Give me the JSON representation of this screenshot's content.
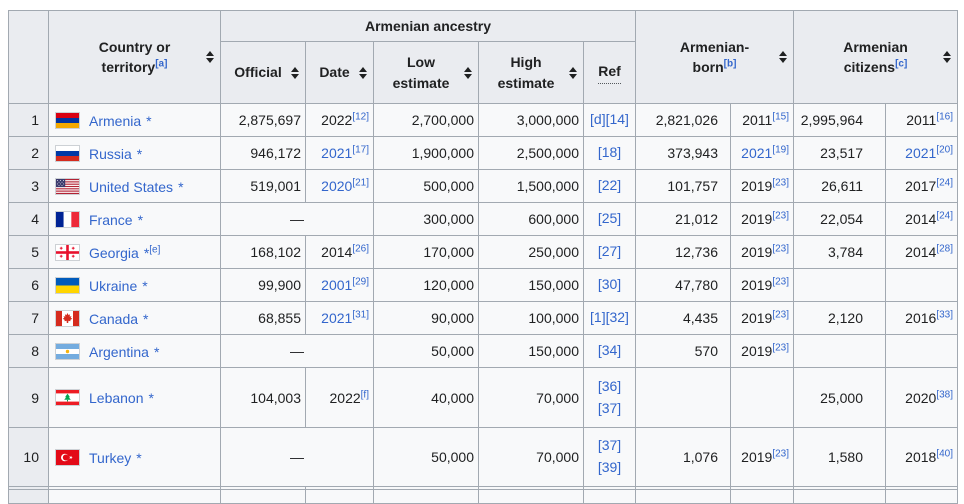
{
  "header": {
    "group_ancestry": "Armenian ancestry",
    "country": "Country or territory",
    "country_note": "[a]",
    "official": "Official",
    "date": "Date",
    "low": "Low estimate",
    "high": "High estimate",
    "ref": "Ref",
    "born": "Armenian-born",
    "born_note": "[b]",
    "citizens": "Armenian citizens",
    "citizens_note": "[c]"
  },
  "colors": {
    "link_blue": "#3366cc",
    "header_bg": "#eaecf0",
    "cell_bg": "#f8f9fa",
    "border": "#a2a9b1",
    "text": "#202122"
  },
  "rows": [
    {
      "num": "1",
      "flag": "am",
      "name": "Armenia",
      "star": "*",
      "note": "",
      "dash": false,
      "official": "2,875,697",
      "anc_year": "2022",
      "anc_ref": "[12]",
      "anc_linked": false,
      "low": "2,700,000",
      "high": "3,000,000",
      "ref1": "[d][14]",
      "ref2": "",
      "born": "2,821,026",
      "born_year": "2011",
      "born_ref": "[15]",
      "born_linked": false,
      "cit": "2,995,964",
      "cit_year": "2011",
      "cit_ref": "[16]",
      "cit_linked": false
    },
    {
      "num": "2",
      "flag": "ru",
      "name": "Russia",
      "star": "*",
      "note": "",
      "dash": false,
      "official": "946,172",
      "anc_year": "2021",
      "anc_ref": "[17]",
      "anc_linked": true,
      "low": "1,900,000",
      "high": "2,500,000",
      "ref1": "[18]",
      "ref2": "",
      "born": "373,943",
      "born_year": "2021",
      "born_ref": "[19]",
      "born_linked": true,
      "cit": "23,517",
      "cit_year": "2021",
      "cit_ref": "[20]",
      "cit_linked": true
    },
    {
      "num": "3",
      "flag": "us",
      "name": "United States",
      "star": "*",
      "note": "",
      "dash": false,
      "official": "519,001",
      "anc_year": "2020",
      "anc_ref": "[21]",
      "anc_linked": true,
      "low": "500,000",
      "high": "1,500,000",
      "ref1": "[22]",
      "ref2": "",
      "born": "101,757",
      "born_year": "2019",
      "born_ref": "[23]",
      "born_linked": false,
      "cit": "26,611",
      "cit_year": "2017",
      "cit_ref": "[24]",
      "cit_linked": false
    },
    {
      "num": "4",
      "flag": "fr",
      "name": "France",
      "star": "*",
      "note": "",
      "dash": true,
      "official": "—",
      "anc_year": "",
      "anc_ref": "",
      "anc_linked": false,
      "low": "300,000",
      "high": "600,000",
      "ref1": "[25]",
      "ref2": "",
      "born": "21,012",
      "born_year": "2019",
      "born_ref": "[23]",
      "born_linked": false,
      "cit": "22,054",
      "cit_year": "2014",
      "cit_ref": "[24]",
      "cit_linked": false
    },
    {
      "num": "5",
      "flag": "ge",
      "name": "Georgia",
      "star": "*",
      "note": "[e]",
      "dash": false,
      "official": "168,102",
      "anc_year": "2014",
      "anc_ref": "[26]",
      "anc_linked": false,
      "low": "170,000",
      "high": "250,000",
      "ref1": "[27]",
      "ref2": "",
      "born": "12,736",
      "born_year": "2019",
      "born_ref": "[23]",
      "born_linked": false,
      "cit": "3,784",
      "cit_year": "2014",
      "cit_ref": "[28]",
      "cit_linked": false
    },
    {
      "num": "6",
      "flag": "ua",
      "name": "Ukraine",
      "star": "*",
      "note": "",
      "dash": false,
      "official": "99,900",
      "anc_year": "2001",
      "anc_ref": "[29]",
      "anc_linked": true,
      "low": "120,000",
      "high": "150,000",
      "ref1": "[30]",
      "ref2": "",
      "born": "47,780",
      "born_year": "2019",
      "born_ref": "[23]",
      "born_linked": false,
      "cit": "",
      "cit_year": "",
      "cit_ref": "",
      "cit_linked": false
    },
    {
      "num": "7",
      "flag": "ca",
      "name": "Canada",
      "star": "*",
      "note": "",
      "dash": false,
      "official": "68,855",
      "anc_year": "2021",
      "anc_ref": "[31]",
      "anc_linked": true,
      "low": "90,000",
      "high": "100,000",
      "ref1": "[1][32]",
      "ref2": "",
      "born": "4,435",
      "born_year": "2019",
      "born_ref": "[23]",
      "born_linked": false,
      "cit": "2,120",
      "cit_year": "2016",
      "cit_ref": "[33]",
      "cit_linked": false
    },
    {
      "num": "8",
      "flag": "ar",
      "name": "Argentina",
      "star": "*",
      "note": "",
      "dash": true,
      "official": "—",
      "anc_year": "",
      "anc_ref": "",
      "anc_linked": false,
      "low": "50,000",
      "high": "150,000",
      "ref1": "[34]",
      "ref2": "",
      "born": "570",
      "born_year": "2019",
      "born_ref": "[23]",
      "born_linked": false,
      "cit": "",
      "cit_year": "",
      "cit_ref": "",
      "cit_linked": false
    },
    {
      "num": "9",
      "flag": "lb",
      "name": "Lebanon",
      "star": "*",
      "note": "",
      "dash": false,
      "official": "104,003",
      "anc_year": "2022",
      "anc_ref": "[f]",
      "anc_linked": false,
      "low": "40,000",
      "high": "70,000",
      "ref1": "[36]",
      "ref2": "[37]",
      "born": "",
      "born_year": "",
      "born_ref": "",
      "born_linked": false,
      "cit": "25,000",
      "cit_year": "2020",
      "cit_ref": "[38]",
      "cit_linked": false
    },
    {
      "num": "10",
      "flag": "tr",
      "name": "Turkey",
      "star": "*",
      "note": "",
      "dash": true,
      "official": "—",
      "anc_year": "",
      "anc_ref": "",
      "anc_linked": false,
      "low": "50,000",
      "high": "70,000",
      "ref1": "[37]",
      "ref2": "[39]",
      "born": "1,076",
      "born_year": "2019",
      "born_ref": "[23]",
      "born_linked": false,
      "cit": "1,580",
      "cit_year": "2018",
      "cit_ref": "[40]",
      "cit_linked": false
    }
  ]
}
